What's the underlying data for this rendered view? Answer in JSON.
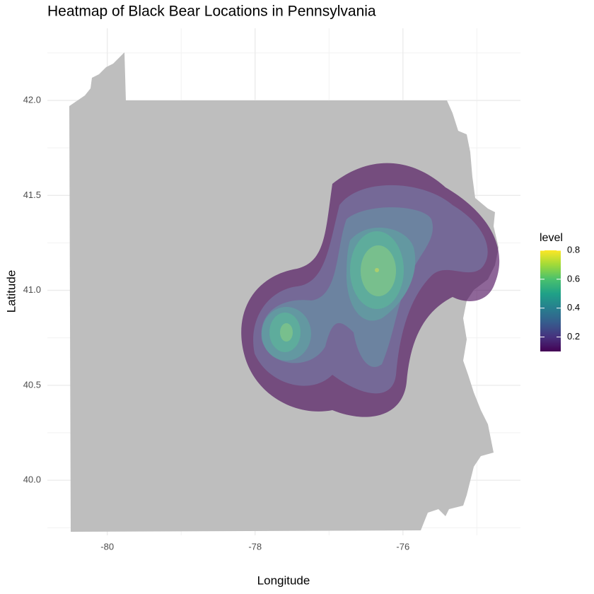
{
  "chart_data": {
    "type": "contour",
    "title": "Heatmap of Black Bear Locations in Pennsylvania",
    "x_label": "Longitude",
    "y_label": "Latitude",
    "xlim": [
      -80.81,
      -74.41
    ],
    "ylim": [
      39.71,
      42.38
    ],
    "xticks": [
      -80,
      -78,
      -76
    ],
    "xminorticks": [
      -79,
      -77,
      -75
    ],
    "yticks": [
      {
        "value": 40,
        "label": "40.0"
      },
      {
        "value": 40.5,
        "label": "40.5"
      },
      {
        "value": 41,
        "label": "41.0"
      },
      {
        "value": 41.5,
        "label": "41.5"
      },
      {
        "value": 42,
        "label": "42.0"
      }
    ],
    "yminorticks": [
      39.75,
      40.25,
      40.75,
      41.25,
      41.75,
      42.25
    ],
    "grid": true,
    "levels": [
      {
        "value": 0.1,
        "color": "#440154"
      },
      {
        "value": 0.2,
        "color": "#46327e"
      },
      {
        "value": 0.3,
        "color": "#365c8d"
      },
      {
        "value": 0.4,
        "color": "#277f8e"
      },
      {
        "value": 0.5,
        "color": "#1fa187"
      },
      {
        "value": 0.6,
        "color": "#4ac16d"
      },
      {
        "value": 0.7,
        "color": "#a0da39"
      }
    ],
    "legend": {
      "title": "level",
      "ticks": [
        0.2,
        0.4,
        0.6,
        0.8
      ],
      "lim": [
        0.1,
        0.8
      ],
      "palette": [
        "#440154",
        "#46327e",
        "#365c8d",
        "#277f8e",
        "#1fa187",
        "#4ac16d",
        "#a0da39",
        "#fde725"
      ]
    }
  }
}
